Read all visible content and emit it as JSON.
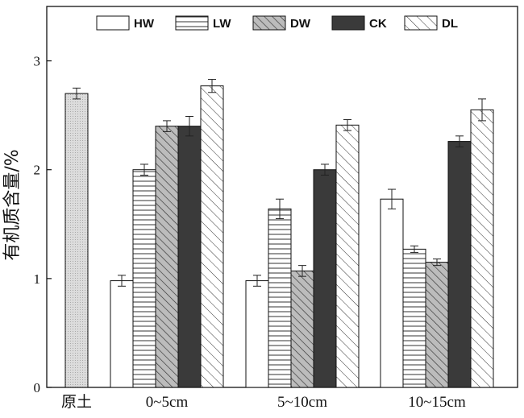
{
  "chart_data": {
    "type": "bar",
    "ylabel": "有机质含量/%",
    "xlabel": "",
    "ylim": [
      0,
      3.5
    ],
    "yticks": [
      0,
      1,
      2,
      3
    ],
    "legend_position": "top",
    "grid": false,
    "baseline": {
      "name": "原土",
      "label": "原土",
      "value": 2.7,
      "error": 0.05,
      "fill": "#d8d8d8",
      "pattern": "dots"
    },
    "categories": [
      "0~5cm",
      "5~10cm",
      "10~15cm"
    ],
    "series": [
      {
        "name": "HW",
        "values": [
          0.98,
          0.98,
          1.73
        ],
        "errors": [
          0.05,
          0.05,
          0.09
        ],
        "pattern": "none",
        "fill": "#ffffff"
      },
      {
        "name": "LW",
        "values": [
          2.0,
          1.64,
          1.27
        ],
        "errors": [
          0.05,
          0.09,
          0.03
        ],
        "pattern": "horizontal",
        "fill": "#ffffff"
      },
      {
        "name": "DW",
        "values": [
          2.4,
          1.07,
          1.15
        ],
        "errors": [
          0.05,
          0.05,
          0.03
        ],
        "pattern": "diagonal-dense",
        "fill": "#bcbcbc"
      },
      {
        "name": "CK",
        "values": [
          2.4,
          2.0,
          2.26
        ],
        "errors": [
          0.09,
          0.05,
          0.05
        ],
        "pattern": "solid",
        "fill": "#3a3a3a"
      },
      {
        "name": "DL",
        "values": [
          2.77,
          2.41,
          2.55
        ],
        "errors": [
          0.06,
          0.05,
          0.1
        ],
        "pattern": "diagonal-sparse",
        "fill": "#ffffff"
      }
    ]
  }
}
